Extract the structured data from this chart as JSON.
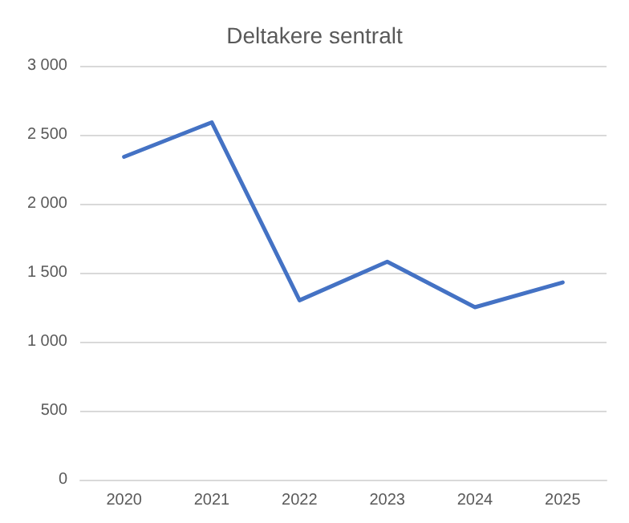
{
  "chart_data": {
    "type": "line",
    "title": "Deltakere sentralt",
    "categories": [
      "2020",
      "2021",
      "2022",
      "2023",
      "2024",
      "2025"
    ],
    "series": [
      {
        "color": "#4472c4",
        "values": [
          2340,
          2590,
          1300,
          1580,
          1250,
          1430
        ]
      }
    ],
    "ylim": [
      0,
      3000
    ],
    "yticks": [
      {
        "value": 0,
        "label": "0"
      },
      {
        "value": 500,
        "label": "500"
      },
      {
        "value": 1000,
        "label": "1 000"
      },
      {
        "value": 1500,
        "label": "1 500"
      },
      {
        "value": 2000,
        "label": "2 000"
      },
      {
        "value": 2500,
        "label": "2 500"
      },
      {
        "value": 3000,
        "label": "3 000"
      }
    ],
    "grid": "y",
    "marker": "none",
    "line_style": "solid"
  }
}
